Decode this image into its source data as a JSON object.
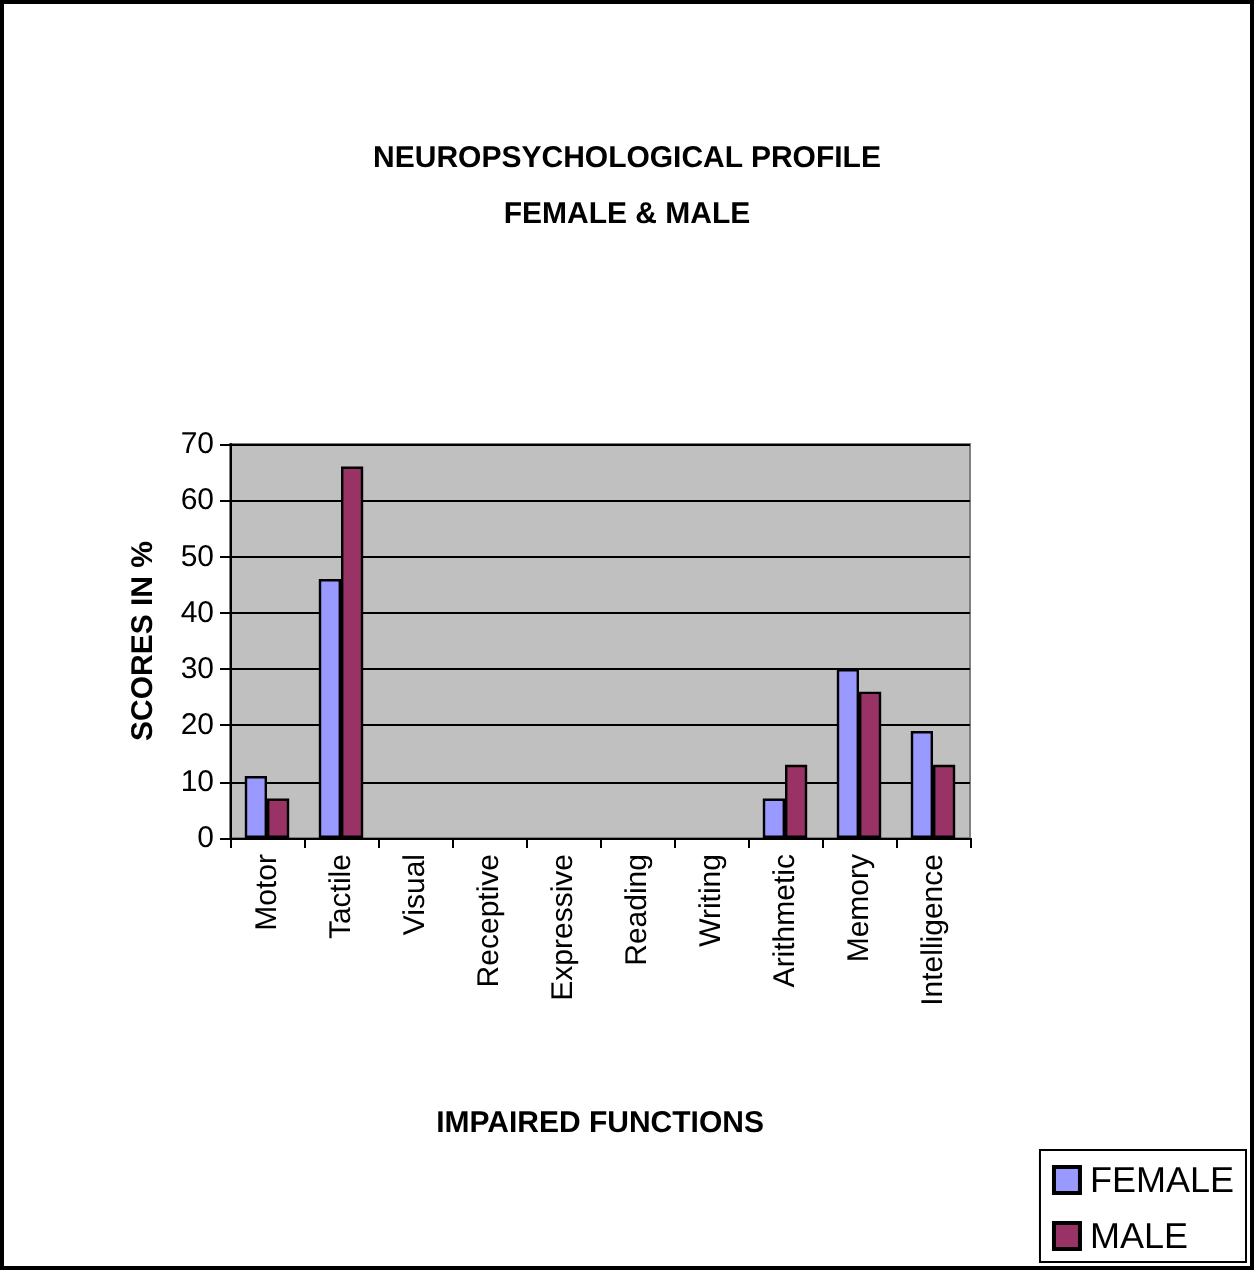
{
  "chart_data": {
    "type": "bar",
    "title": "NEUROPSYCHOLOGICAL PROFILE\nFEMALE & MALE",
    "xlabel": "IMPAIRED FUNCTIONS",
    "ylabel": "SCORES IN %",
    "categories": [
      "Motor",
      "Tactile",
      "Visual",
      "Receptive",
      "Expressive",
      "Reading",
      "Writing",
      "Arithmetic",
      "Memory",
      "Intelligence"
    ],
    "series": [
      {
        "name": "FEMALE",
        "color": "#9999ff",
        "values": [
          11,
          46,
          null,
          null,
          null,
          null,
          null,
          7,
          30,
          19
        ]
      },
      {
        "name": "MALE",
        "color": "#993366",
        "values": [
          7,
          66,
          null,
          null,
          null,
          null,
          null,
          13,
          26,
          13
        ]
      }
    ],
    "ylim": [
      0,
      70
    ],
    "yticks": [
      0,
      10,
      20,
      30,
      40,
      50,
      60,
      70
    ],
    "grid": "y",
    "legend": "bottom right"
  }
}
